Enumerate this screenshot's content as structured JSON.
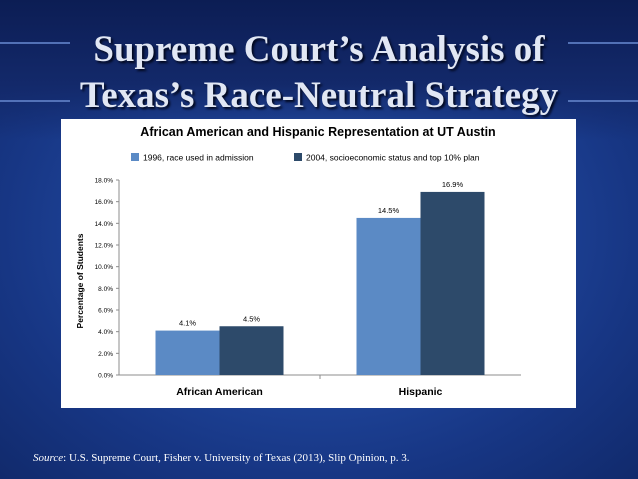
{
  "slide": {
    "title_line1": "Supreme Court’s Analysis of",
    "title_line2": "Texas’s Race-Neutral Strategy",
    "source_label": "Source",
    "source_text": ": U.S. Supreme Court, Fisher v. University of Texas (2013), Slip Opinion, p. 3.",
    "colors": {
      "background": "#1f4694",
      "title": "#e1e7f4"
    }
  },
  "chart_data": {
    "type": "bar",
    "title": "African American and Hispanic Representation at UT Austin",
    "ylabel": "Percentage of Students",
    "xlabel": "",
    "categories": [
      "African American",
      "Hispanic"
    ],
    "series": [
      {
        "name": "1996, race used in admission",
        "values": [
          4.1,
          14.5
        ],
        "labels": [
          "4.1%",
          "14.5%"
        ],
        "color": "#5b8ac5"
      },
      {
        "name": "2004, socioeconomic status and top 10% plan",
        "values": [
          4.5,
          16.9
        ],
        "labels": [
          "4.5%",
          "16.9%"
        ],
        "color": "#2d4a6a"
      }
    ],
    "ylim": [
      0,
      18
    ],
    "yticks": [
      "0.0%",
      "2.0%",
      "4.0%",
      "6.0%",
      "8.0%",
      "10.0%",
      "12.0%",
      "14.0%",
      "16.0%",
      "18.0%"
    ],
    "grid": false,
    "legend": "top"
  }
}
